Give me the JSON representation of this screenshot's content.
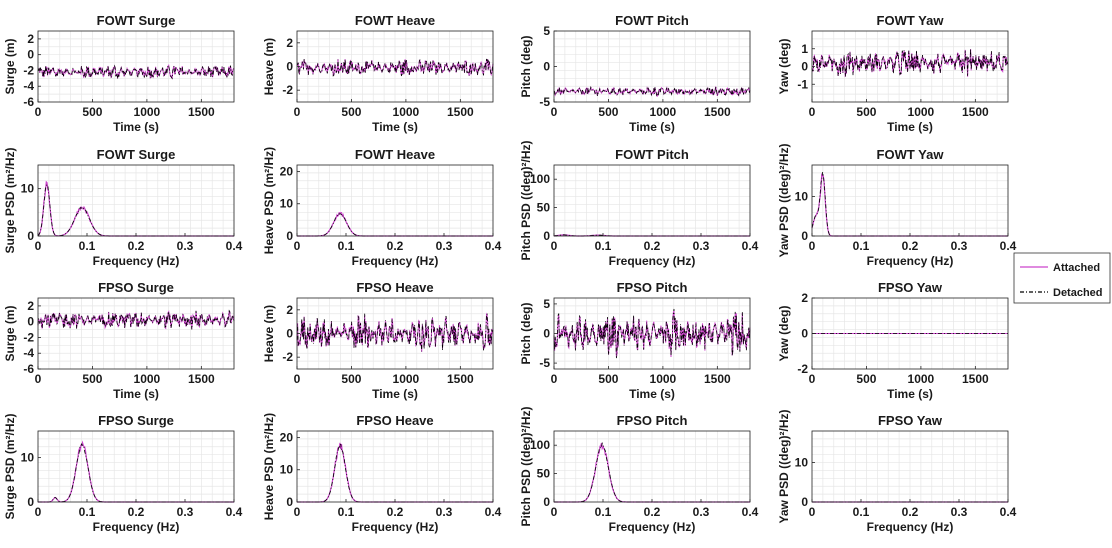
{
  "chart_data": {
    "type": "line",
    "legend": {
      "placement": "right",
      "entries": [
        {
          "label": "Attached",
          "color": "#cc44cc",
          "style": "solid"
        },
        {
          "label": "Detached",
          "color": "#000000",
          "style": "dash-dot"
        }
      ]
    },
    "rows": [
      {
        "kind": "time",
        "xlabel": "Time (s)",
        "xlim": [
          0,
          1800
        ],
        "xticks": [
          0,
          500,
          1000,
          1500
        ],
        "panels": [
          {
            "title": "FOWT Surge",
            "ylabel": "Surge (m)",
            "ylim": [
              -6,
              3
            ],
            "yticks": [
              -6,
              -4,
              -2,
              0,
              2
            ],
            "mean": -2.2,
            "amp": 0.7
          },
          {
            "title": "FOWT Heave",
            "ylabel": "Heave (m)",
            "ylim": [
              -3,
              3
            ],
            "yticks": [
              -2,
              0,
              2
            ],
            "mean": -0.1,
            "amp": 0.6
          },
          {
            "title": "FOWT Pitch",
            "ylabel": "Pitch (deg)",
            "ylim": [
              -5,
              5
            ],
            "yticks": [
              -5,
              0,
              5
            ],
            "mean": -3.5,
            "amp": 0.5
          },
          {
            "title": "FOWT Yaw",
            "ylabel": "Yaw (deg)",
            "ylim": [
              -2,
              2
            ],
            "yticks": [
              -1,
              0,
              1
            ],
            "mean": 0.2,
            "amp": 0.6
          }
        ]
      },
      {
        "kind": "psd",
        "xlabel": "Frequency (Hz)",
        "xlim": [
          0,
          0.4
        ],
        "xticks": [
          0,
          0.1,
          0.2,
          0.3,
          0.4
        ],
        "panels": [
          {
            "title": "FOWT Surge",
            "ylabel": "Surge PSD (m²/Hz)",
            "ylim": [
              0,
              15
            ],
            "yticks": [
              0,
              10
            ],
            "peaks": [
              {
                "f": 0.018,
                "h": 11,
                "w": 0.006
              },
              {
                "f": 0.09,
                "h": 6,
                "w": 0.015
              }
            ]
          },
          {
            "title": "FOWT Heave",
            "ylabel": "Heave PSD (m²/Hz)",
            "ylim": [
              0,
              22
            ],
            "yticks": [
              0,
              10,
              20
            ],
            "peaks": [
              {
                "f": 0.088,
                "h": 7,
                "w": 0.013
              }
            ]
          },
          {
            "title": "FOWT Pitch",
            "ylabel": "Pitch PSD ((deg)²/Hz)",
            "ylim": [
              0,
              125
            ],
            "yticks": [
              0,
              50,
              100
            ],
            "peaks": [
              {
                "f": 0.02,
                "h": 2,
                "w": 0.01
              },
              {
                "f": 0.09,
                "h": 1.5,
                "w": 0.012
              }
            ]
          },
          {
            "title": "FOWT Yaw",
            "ylabel": "Yaw PSD ((deg)²/Hz)",
            "ylim": [
              0,
              18
            ],
            "yticks": [
              0,
              10
            ],
            "peaks": [
              {
                "f": 0.022,
                "h": 15.5,
                "w": 0.005
              },
              {
                "f": 0.008,
                "h": 5,
                "w": 0.006
              }
            ]
          }
        ]
      },
      {
        "kind": "time",
        "xlabel": "Time (s)",
        "xlim": [
          0,
          1800
        ],
        "xticks": [
          0,
          500,
          1000,
          1500
        ],
        "panels": [
          {
            "title": "FPSO Surge",
            "ylabel": "Surge (m)",
            "ylim": [
              -6,
              3
            ],
            "yticks": [
              -6,
              -4,
              -2,
              0,
              2
            ],
            "mean": 0.2,
            "amp": 0.9
          },
          {
            "title": "FPSO Heave",
            "ylabel": "Heave (m)",
            "ylim": [
              -3,
              3
            ],
            "yticks": [
              -2,
              0,
              2
            ],
            "mean": 0.0,
            "amp": 1.2
          },
          {
            "title": "FPSO Pitch",
            "ylabel": "Pitch (deg)",
            "ylim": [
              -6,
              6
            ],
            "yticks": [
              -5,
              0,
              5
            ],
            "mean": 0.0,
            "amp": 2.8
          },
          {
            "title": "FPSO Yaw",
            "ylabel": "Yaw (deg)",
            "ylim": [
              -2,
              2
            ],
            "yticks": [
              -2,
              0,
              2
            ],
            "mean": 0.0,
            "amp": 0.0
          }
        ]
      },
      {
        "kind": "psd",
        "xlabel": "Frequency (Hz)",
        "xlim": [
          0,
          0.4
        ],
        "xticks": [
          0,
          0.1,
          0.2,
          0.3,
          0.4
        ],
        "panels": [
          {
            "title": "FPSO Surge",
            "ylabel": "Surge PSD (m²/Hz)",
            "ylim": [
              0,
              16
            ],
            "yticks": [
              0,
              10
            ],
            "peaks": [
              {
                "f": 0.09,
                "h": 13,
                "w": 0.012
              },
              {
                "f": 0.035,
                "h": 1,
                "w": 0.004
              }
            ]
          },
          {
            "title": "FPSO Heave",
            "ylabel": "Heave PSD (m²/Hz)",
            "ylim": [
              0,
              22
            ],
            "yticks": [
              0,
              10,
              20
            ],
            "peaks": [
              {
                "f": 0.088,
                "h": 17.5,
                "w": 0.011
              }
            ]
          },
          {
            "title": "FPSO Pitch",
            "ylabel": "Pitch PSD ((deg)²/Hz)",
            "ylim": [
              0,
              125
            ],
            "yticks": [
              0,
              50,
              100
            ],
            "peaks": [
              {
                "f": 0.098,
                "h": 100,
                "w": 0.013
              }
            ]
          },
          {
            "title": "FPSO Yaw",
            "ylabel": "Yaw PSD ((deg)²/Hz)",
            "ylim": [
              0,
              18
            ],
            "yticks": [
              0,
              10
            ],
            "peaks": []
          }
        ]
      }
    ]
  }
}
